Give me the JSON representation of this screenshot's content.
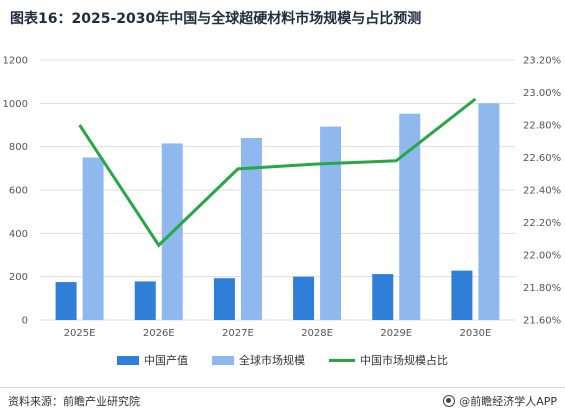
{
  "title": "图表16：2025-2030年中国与全球超硬材料市场规模与占比预测",
  "colors": {
    "china_bar": "#2f7fd9",
    "global_bar": "#8fb9ee",
    "share_line": "#27a844",
    "grid": "#dddddd"
  },
  "chart_data": {
    "type": "bar",
    "categories": [
      "2025E",
      "2026E",
      "2027E",
      "2028E",
      "2029E",
      "2030E"
    ],
    "series": [
      {
        "name": "中国产值",
        "type": "bar",
        "axis": "left",
        "values": [
          175,
          178,
          193,
          200,
          212,
          228
        ]
      },
      {
        "name": "全球市场规模",
        "type": "bar",
        "axis": "left",
        "values": [
          750,
          815,
          840,
          893,
          952,
          1000
        ]
      },
      {
        "name": "中国市场规模占比",
        "type": "line",
        "axis": "right",
        "values": [
          22.8,
          22.06,
          22.53,
          22.56,
          22.58,
          22.96
        ]
      }
    ],
    "ylim_left": [
      0,
      1200
    ],
    "yticks_left": [
      "0",
      "200",
      "400",
      "600",
      "800",
      "1000",
      "1200"
    ],
    "ylim_right": [
      21.6,
      23.2
    ],
    "yticks_right": [
      "21.60%",
      "21.80%",
      "22.00%",
      "22.20%",
      "22.40%",
      "22.60%",
      "22.80%",
      "23.00%",
      "23.20%"
    ],
    "grid": true,
    "legend_position": "bottom"
  },
  "footer": {
    "source": "资料来源：前瞻产业研究院",
    "brand": "@前瞻经济学人APP"
  },
  "icons": {
    "brand": "qianzhan-logo-icon"
  }
}
